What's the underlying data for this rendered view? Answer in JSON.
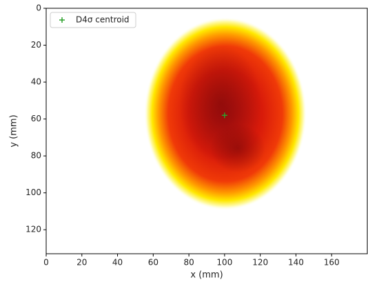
{
  "chart_data": {
    "type": "scatter",
    "x_label": "x (mm)",
    "y_label": "y (mm)",
    "series": [
      {
        "name": "D4σ centroid",
        "color": "#2ca02c",
        "marker": "+",
        "x": [
          100
        ],
        "values": [
          58
        ]
      }
    ],
    "xlim": [
      0,
      180
    ],
    "ylim": [
      133,
      0
    ],
    "xticks": [
      0,
      20,
      40,
      60,
      80,
      100,
      120,
      140,
      160
    ],
    "yticks": [
      0,
      20,
      40,
      60,
      80,
      100,
      120
    ],
    "legend": "upper left"
  }
}
